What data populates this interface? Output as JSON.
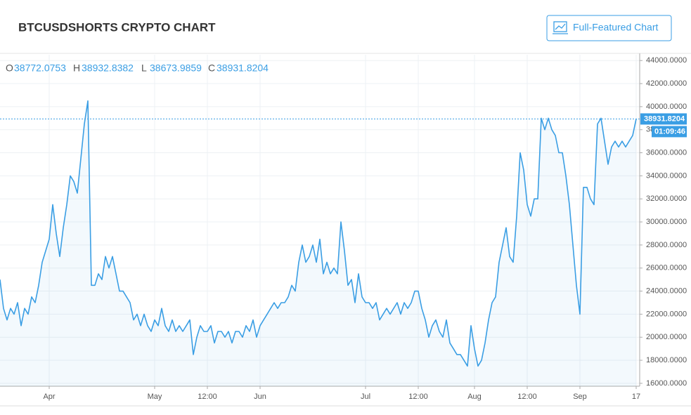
{
  "header": {
    "title": "BTCUSDSHORTS CRYPTO CHART",
    "button": "Full-Featured Chart"
  },
  "ohlc": [
    {
      "label": "O",
      "value": 38772.0753
    },
    {
      "label": "H",
      "value": 38932.8382
    },
    {
      "label": "L",
      "value": 38673.9859
    },
    {
      "label": "C",
      "value": 38931.8204
    }
  ],
  "chart_data": {
    "type": "line",
    "series": [
      {
        "name": "BTCUSDSHORTS",
        "color": "#3a9ee4",
        "values": [
          25000,
          22500,
          21500,
          22500,
          22000,
          23000,
          21000,
          22500,
          22000,
          23500,
          23000,
          24500,
          26500,
          27500,
          28500,
          31500,
          29000,
          27000,
          29500,
          31500,
          34000,
          33500,
          32500,
          35500,
          38500,
          40500,
          24500,
          24500,
          25500,
          25000,
          27000,
          26000,
          27000,
          25500,
          24000,
          24000,
          23500,
          23000,
          21500,
          22000,
          21000,
          22000,
          21000,
          20500,
          21500,
          21000,
          22500,
          21000,
          20500,
          21500,
          20500,
          21000,
          20500,
          21000,
          21500,
          18500,
          20000,
          21000,
          20500,
          20500,
          21000,
          19500,
          20500,
          20500,
          20000,
          20500,
          19500,
          20500,
          20500,
          20000,
          21000,
          20500,
          21500,
          20000,
          21000,
          21500,
          22000,
          22500,
          23000,
          22500,
          23000,
          23000,
          23500,
          24500,
          24000,
          26500,
          28000,
          26500,
          27000,
          28000,
          26500,
          28500,
          25500,
          26500,
          25500,
          26000,
          25500,
          30000,
          27500,
          24500,
          25000,
          23000,
          25500,
          23500,
          23000,
          23000,
          22500,
          23000,
          21500,
          22000,
          22500,
          22000,
          22500,
          23000,
          22000,
          23000,
          22500,
          23000,
          24000,
          24000,
          22500,
          21500,
          20000,
          21000,
          21500,
          20500,
          20000,
          21500,
          19500,
          19000,
          18500,
          18500,
          18000,
          17500,
          21000,
          19000,
          17500,
          18000,
          19500,
          21500,
          23000,
          23500,
          26500,
          28000,
          29500,
          27000,
          26500,
          30500,
          36000,
          34500,
          31500,
          30500,
          32000,
          32000,
          39000,
          38000,
          39000,
          38000,
          37500,
          36000,
          36000,
          34000,
          31500,
          28000,
          24500,
          22000,
          33000,
          33000,
          32000,
          31500,
          38500,
          39000,
          37000,
          35000,
          36500,
          37000,
          36500,
          37000,
          36500,
          37000,
          37500,
          38931.8204
        ]
      }
    ],
    "xlim": [
      0,
      182
    ],
    "xticks": [
      {
        "value": 14,
        "label": "Apr"
      },
      {
        "value": 44,
        "label": "May"
      },
      {
        "value": 59,
        "label": "12:00"
      },
      {
        "value": 74,
        "label": "Jun"
      },
      {
        "value": 104,
        "label": "Jul"
      },
      {
        "value": 119,
        "label": "12:00"
      },
      {
        "value": 135,
        "label": "Aug"
      },
      {
        "value": 150,
        "label": "12:00"
      },
      {
        "value": 165,
        "label": "Sep"
      },
      {
        "value": 181,
        "label": "17"
      }
    ],
    "ylim": [
      15750,
      44500
    ],
    "yticks": [
      {
        "value": 16000,
        "label": "16000.0000"
      },
      {
        "value": 18000,
        "label": "18000.0000"
      },
      {
        "value": 20000,
        "label": "20000.0000"
      },
      {
        "value": 22000,
        "label": "22000.0000"
      },
      {
        "value": 24000,
        "label": "24000.0000"
      },
      {
        "value": 26000,
        "label": "26000.0000"
      },
      {
        "value": 28000,
        "label": "28000.0000"
      },
      {
        "value": 30000,
        "label": "30000.0000"
      },
      {
        "value": 32000,
        "label": "32000.0000"
      },
      {
        "value": 34000,
        "label": "34000.0000"
      },
      {
        "value": 36000,
        "label": "36000.0000"
      },
      {
        "value": 38000,
        "label": "38000.0000"
      },
      {
        "value": 40000,
        "label": "40000.0000"
      },
      {
        "value": 42000,
        "label": "42000.0000"
      },
      {
        "value": 44000,
        "label": "44000.0000"
      }
    ],
    "grid": true,
    "last_price": 38931.8204,
    "countdown": "01:09:46"
  }
}
